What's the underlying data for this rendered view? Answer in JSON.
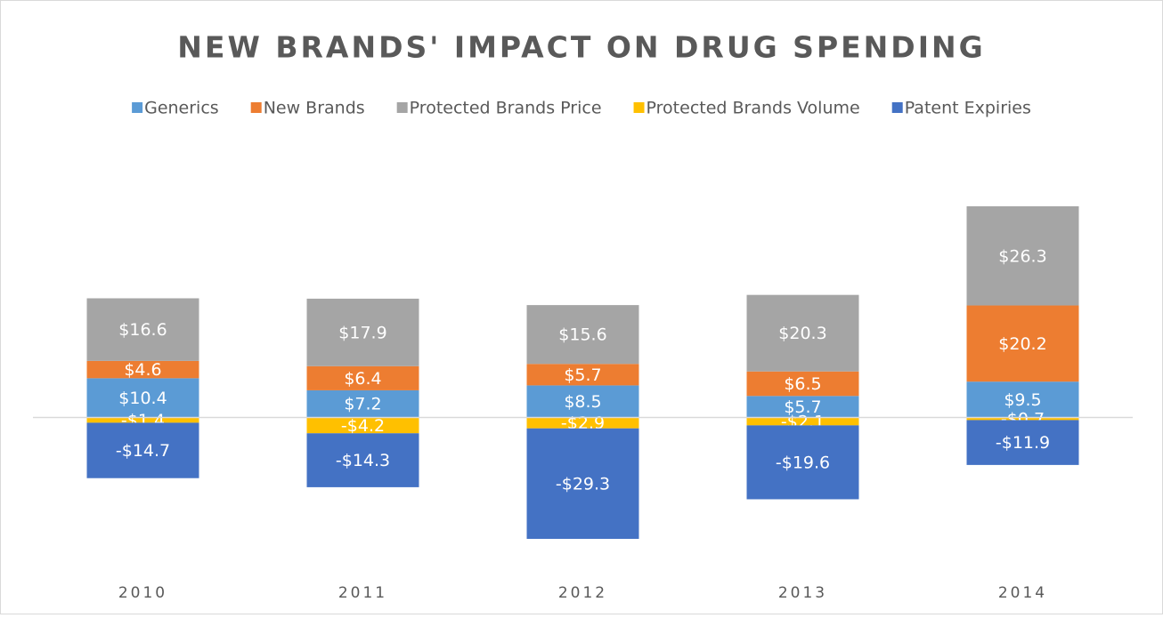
{
  "chart_data": {
    "type": "stacked-bar",
    "title": "NEW BRANDS' IMPACT ON DRUG SPENDING",
    "categories": [
      "2010",
      "2011",
      "2012",
      "2013",
      "2014"
    ],
    "series": [
      {
        "name": "Generics",
        "color": "#5b9bd5",
        "values": [
          10.4,
          7.2,
          8.5,
          5.7,
          9.5
        ],
        "value_labels": [
          "$10.4",
          "$7.2",
          "$8.5",
          "$5.7",
          "$9.5"
        ]
      },
      {
        "name": "New Brands",
        "color": "#ed7d31",
        "values": [
          4.6,
          6.4,
          5.7,
          6.5,
          20.2
        ],
        "value_labels": [
          "$4.6",
          "$6.4",
          "$5.7",
          "$6.5",
          "$20.2"
        ]
      },
      {
        "name": "Protected Brands Price",
        "color": "#a5a5a5",
        "values": [
          16.6,
          17.9,
          15.6,
          20.3,
          26.3
        ],
        "value_labels": [
          "$16.6",
          "$17.9",
          "$15.6",
          "$20.3",
          "$26.3"
        ]
      },
      {
        "name": "Protected Brands Volume",
        "color": "#ffc000",
        "values": [
          -1.4,
          -4.2,
          -2.9,
          -2.1,
          -0.7
        ],
        "value_labels": [
          "-$1.4",
          "-$4.2",
          "-$2.9",
          "-$2.1",
          "-$0.7"
        ]
      },
      {
        "name": "Patent Expiries",
        "color": "#4472c4",
        "values": [
          -14.7,
          -14.3,
          -29.3,
          -19.6,
          -11.9
        ],
        "value_labels": [
          "-$14.7",
          "-$14.3",
          "-$29.3",
          "-$19.6",
          "-$11.9"
        ]
      }
    ]
  }
}
